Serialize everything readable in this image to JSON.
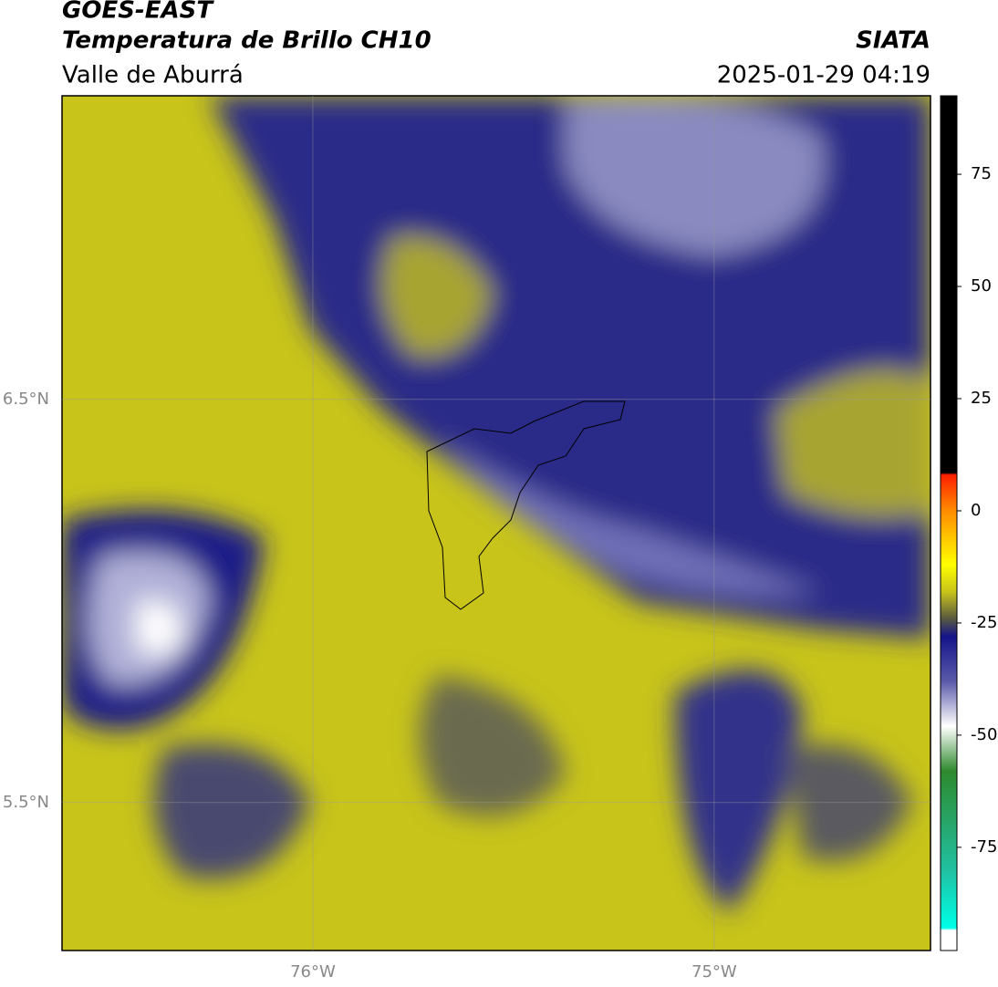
{
  "header": {
    "title": "GOES-EAST",
    "subtitle": "Temperatura de Brillo CH10",
    "region": "Valle de Aburrá",
    "source": "SIATA",
    "datetime": "2025-01-29 04:19"
  },
  "map": {
    "xlim": [
      -76.625,
      -74.461
    ],
    "ylim": [
      5.133,
      7.253
    ],
    "xticks": [
      {
        "value": -76,
        "label": "76°W"
      },
      {
        "value": -75,
        "label": "75°W"
      }
    ],
    "yticks": [
      {
        "value": 6.5,
        "label": "6.5°N"
      },
      {
        "value": 5.5,
        "label": "5.5°N"
      }
    ],
    "grid": true
  },
  "colorbar": {
    "lim": [
      -98,
      92.5
    ],
    "ticks": [
      75,
      50,
      25,
      0,
      -25,
      -50,
      -75
    ],
    "colormap": [
      {
        "value": 92.5,
        "color": "#000000"
      },
      {
        "value": 8.5,
        "color": "#000000"
      },
      {
        "value": 8,
        "color": "#ff2000"
      },
      {
        "value": 0,
        "color": "#ff8c00"
      },
      {
        "value": -12,
        "color": "#ffff00"
      },
      {
        "value": -18,
        "color": "#c8c41a"
      },
      {
        "value": -24,
        "color": "#5a5a40"
      },
      {
        "value": -28,
        "color": "#14148a"
      },
      {
        "value": -38,
        "color": "#5a5aaa"
      },
      {
        "value": -48,
        "color": "#ffffff"
      },
      {
        "value": -58,
        "color": "#2e8a2e"
      },
      {
        "value": -80,
        "color": "#20c0a0"
      },
      {
        "value": -93,
        "color": "#00ffe8"
      },
      {
        "value": -93.5,
        "color": "#ffffff"
      },
      {
        "value": -98,
        "color": "#ffffff"
      }
    ]
  }
}
